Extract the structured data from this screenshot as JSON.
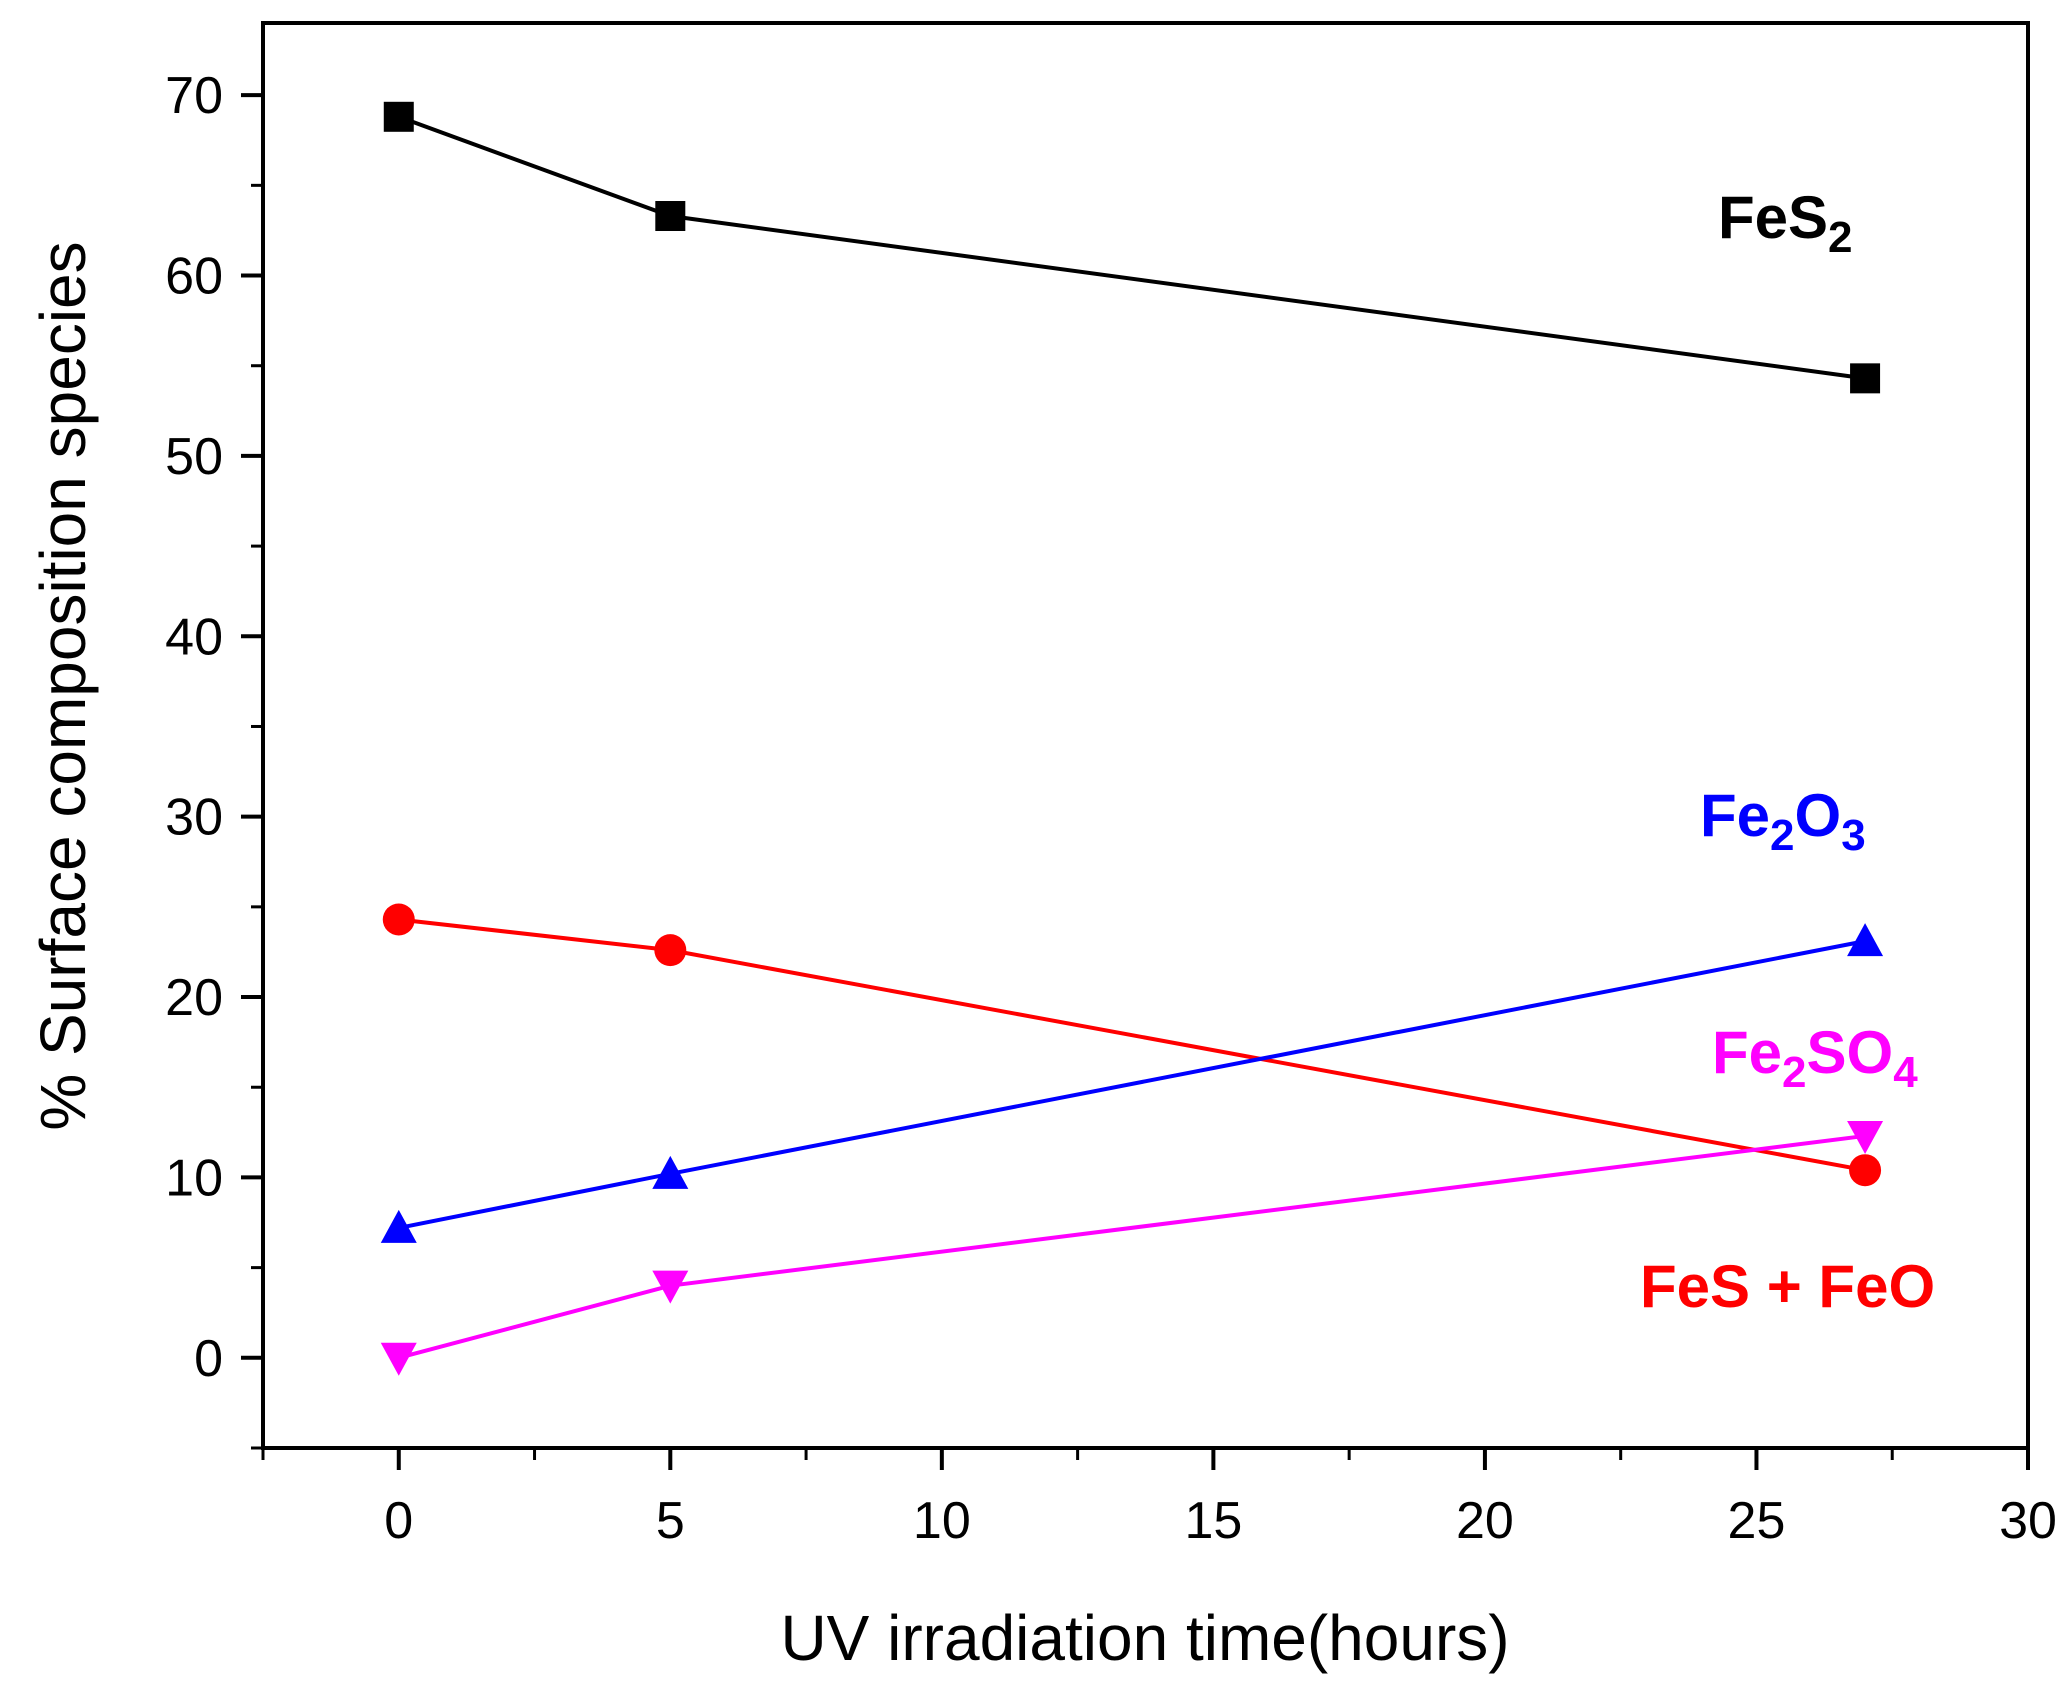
{
  "chart_data": {
    "type": "line",
    "title": "",
    "xlabel": "UV irradiation time(hours)",
    "ylabel": "% Surface composition species",
    "xlim": [
      -2.5,
      30
    ],
    "ylim": [
      -5,
      74
    ],
    "xticks": [
      0,
      5,
      10,
      15,
      20,
      25,
      30
    ],
    "yticks": [
      0,
      10,
      20,
      30,
      40,
      50,
      60,
      70
    ],
    "grid": false,
    "series": [
      {
        "name": "FeS2",
        "label_main": "FeS",
        "label_parts": [
          {
            "text": "FeS",
            "sub": false
          },
          {
            "text": "2",
            "sub": true
          }
        ],
        "color": "#000000",
        "marker": "square",
        "x": [
          0,
          5,
          27
        ],
        "values": [
          68.8,
          63.3,
          54.3
        ]
      },
      {
        "name": "FeS + FeO",
        "label_parts": [
          {
            "text": "FeS + FeO",
            "sub": false
          }
        ],
        "color": "#ff0000",
        "marker": "circle",
        "x": [
          0,
          5,
          27
        ],
        "values": [
          24.3,
          22.6,
          10.4
        ]
      },
      {
        "name": "Fe2O3",
        "label_parts": [
          {
            "text": "Fe",
            "sub": false
          },
          {
            "text": "2",
            "sub": true
          },
          {
            "text": "O",
            "sub": false
          },
          {
            "text": "3",
            "sub": true
          }
        ],
        "color": "#0000ff",
        "marker": "triangle-up",
        "x": [
          0,
          5,
          27
        ],
        "values": [
          7.2,
          10.2,
          23.1
        ]
      },
      {
        "name": "Fe2SO4",
        "label_parts": [
          {
            "text": "Fe",
            "sub": false
          },
          {
            "text": "2",
            "sub": true
          },
          {
            "text": "SO",
            "sub": false
          },
          {
            "text": "4",
            "sub": true
          }
        ],
        "color": "#ff00ff",
        "marker": "triangle-down",
        "x": [
          0,
          5,
          27
        ],
        "values": [
          0.0,
          4.0,
          12.3
        ]
      }
    ]
  }
}
